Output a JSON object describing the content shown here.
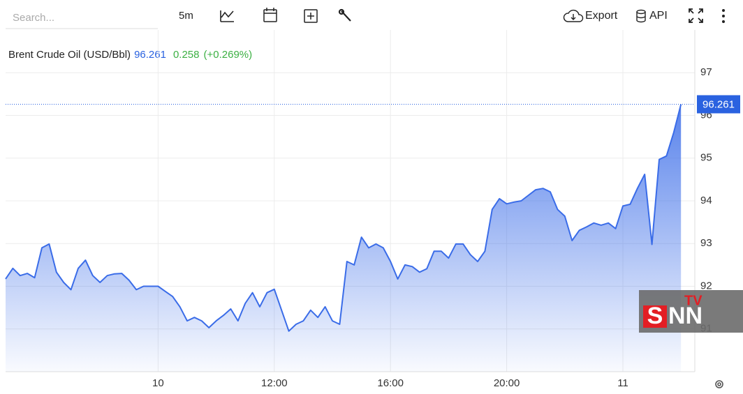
{
  "toolbar": {
    "search_placeholder": "Search...",
    "interval": "5m",
    "export": "Export",
    "api": "API"
  },
  "quote": {
    "name": "Brent Crude Oil (USD/Bbl)",
    "change": 0.258,
    "change_percent": "(+0.269%)"
  },
  "watermark": {
    "brand_s": "S",
    "brand_nn": "NN",
    "brand_tv": "TV"
  },
  "chart_data": {
    "type": "area",
    "title": "Brent Crude Oil (USD/Bbl)",
    "categories": [
      null,
      null,
      null,
      null,
      null,
      null,
      null,
      null,
      null,
      null,
      null,
      null,
      null,
      null,
      null,
      null,
      null,
      null,
      null,
      null,
      null,
      "10",
      null,
      null,
      null,
      null,
      null,
      null,
      null,
      null,
      null,
      null,
      null,
      null,
      null,
      null,
      null,
      "12:00",
      null,
      null,
      null,
      null,
      null,
      null,
      null,
      null,
      null,
      null,
      null,
      null,
      null,
      null,
      null,
      "16:00",
      null,
      null,
      null,
      null,
      null,
      null,
      null,
      null,
      null,
      null,
      null,
      null,
      null,
      null,
      null,
      "20:00",
      null,
      null,
      null,
      null,
      null,
      null,
      null,
      null,
      null,
      null,
      null,
      null,
      null,
      null,
      null,
      "11",
      null,
      null,
      null,
      null,
      null,
      null,
      null,
      null
    ],
    "series": [
      {
        "name": "Brent Crude Oil (USD/Bbl)",
        "color": "#3a6ce8",
        "values": [
          92.17,
          92.42,
          92.25,
          92.3,
          92.2,
          92.9,
          92.99,
          92.33,
          92.09,
          91.92,
          92.42,
          92.61,
          92.25,
          92.09,
          92.25,
          92.29,
          92.3,
          92.14,
          91.92,
          92.0,
          92.0,
          92.0,
          91.88,
          91.76,
          91.52,
          91.19,
          91.27,
          91.19,
          91.03,
          91.19,
          91.32,
          91.47,
          91.19,
          91.6,
          91.85,
          91.52,
          91.85,
          91.93,
          91.44,
          90.95,
          91.11,
          91.19,
          91.44,
          91.27,
          91.52,
          91.19,
          91.11,
          92.58,
          92.5,
          93.15,
          92.9,
          92.99,
          92.9,
          92.58,
          92.17,
          92.5,
          92.46,
          92.33,
          92.41,
          92.82,
          92.82,
          92.66,
          92.99,
          92.99,
          92.74,
          92.58,
          92.82,
          93.8,
          94.05,
          93.93,
          93.97,
          94.0,
          94.13,
          94.26,
          94.29,
          94.21,
          93.8,
          93.64,
          93.07,
          93.31,
          93.39,
          93.48,
          93.43,
          93.48,
          93.35,
          93.88,
          93.92,
          94.29,
          94.62,
          92.98,
          94.97,
          95.05,
          95.6,
          96.261
        ]
      }
    ],
    "ylim": [
      90,
      98
    ],
    "yticks": [
      91,
      92,
      93,
      94,
      95,
      96,
      97
    ],
    "grid": true,
    "axis_side": "right",
    "last_value_color": "#2a62e0",
    "change_color": "#3cb043"
  }
}
